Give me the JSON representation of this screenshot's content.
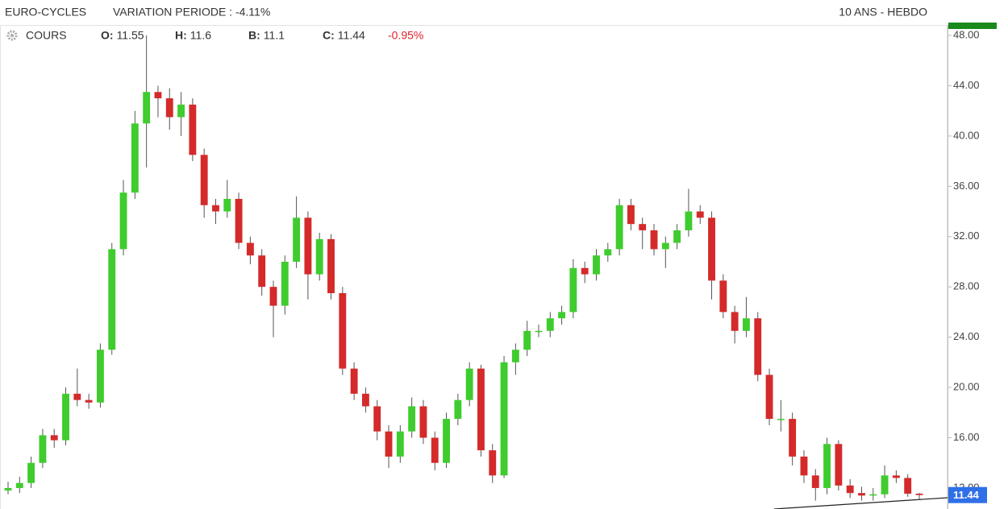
{
  "chart_data": {
    "type": "candlestick",
    "title": "EURO-CYCLES",
    "subtitle": "VARIATION PERIODE : -4.11%",
    "period": "10 ANS - HEBDO",
    "series_name": "COURS",
    "quote": [
      {
        "label": "O:",
        "value": 11.55
      },
      {
        "label": "H:",
        "value": 11.6
      },
      {
        "label": "B:",
        "value": 11.1
      },
      {
        "label": "C:",
        "value": 11.44
      }
    ],
    "change": "-0.95%",
    "up_color": "#3fcc2e",
    "down_color": "#d42a2a",
    "last_color": "#2f6fe8",
    "grid": false,
    "ylim": [
      10.33,
      48.77
    ],
    "yticks": [
      {
        "value": 12,
        "label": "12.00"
      },
      {
        "value": 16,
        "label": "16.00"
      },
      {
        "value": 20,
        "label": "20.00"
      },
      {
        "value": 24,
        "label": "24.00"
      },
      {
        "value": 28,
        "label": "28.00"
      },
      {
        "value": 32,
        "label": "32.00"
      },
      {
        "value": 36,
        "label": "36.00"
      },
      {
        "value": 40,
        "label": "40.00"
      },
      {
        "value": 44,
        "label": "44.00"
      },
      {
        "value": 48,
        "label": "48.00"
      }
    ],
    "open": [
      11.8,
      12.0,
      12.4,
      14.0,
      16.2,
      15.8,
      19.5,
      19.0,
      18.8,
      23.0,
      31.0,
      35.5,
      41.0,
      43.5,
      43.0,
      41.5,
      42.5,
      38.5,
      34.5,
      34.0,
      35.0,
      31.5,
      30.5,
      28.0,
      26.5,
      30.0,
      33.5,
      29.0,
      31.8,
      27.5,
      21.5,
      19.5,
      18.5,
      16.5,
      14.5,
      16.5,
      18.5,
      16.0,
      14.0,
      17.5,
      19.0,
      21.5,
      15.0,
      13.0,
      22.0,
      23.0,
      24.5,
      24.5,
      25.5,
      26.0,
      29.5,
      29.0,
      30.5,
      31.0,
      34.5,
      33.0,
      32.5,
      31.0,
      31.5,
      32.5,
      34.0,
      33.5,
      28.5,
      26.0,
      24.5,
      25.5,
      21.0,
      17.5,
      17.5,
      14.5,
      13.0,
      12.0,
      15.5,
      12.2,
      11.6,
      11.4,
      11.5,
      13.0,
      12.8,
      11.55
    ],
    "high": [
      12.5,
      12.9,
      14.5,
      16.7,
      16.7,
      20,
      21.5,
      19.5,
      23.5,
      31.5,
      36.5,
      42,
      48,
      44,
      43.8,
      43.5,
      43,
      39,
      35,
      36.5,
      35.5,
      32,
      31,
      28.5,
      30.5,
      35.2,
      34,
      32.3,
      32.2,
      28,
      22,
      20,
      19,
      17,
      17,
      19.2,
      19,
      16.5,
      18,
      19.5,
      22,
      21.8,
      15.5,
      22.5,
      23.5,
      25.3,
      25,
      26,
      26.5,
      30.2,
      30,
      31,
      31.5,
      35,
      35,
      33.5,
      33,
      32,
      33,
      35.8,
      34.5,
      34,
      29,
      26.5,
      27.2,
      26,
      21.5,
      19,
      18,
      15,
      13.5,
      16,
      15.8,
      12.7,
      12.1,
      12,
      13.8,
      13.4,
      13.1,
      11.6
    ],
    "low": [
      11.5,
      11.6,
      12,
      13.6,
      15.2,
      15.4,
      18.5,
      18.3,
      18.4,
      22.6,
      30.5,
      35,
      37.5,
      41.5,
      40.5,
      40,
      38,
      33.5,
      33,
      33.5,
      31,
      29.8,
      27.3,
      24,
      25.8,
      29.5,
      27,
      28.5,
      27,
      21,
      19,
      18,
      15.8,
      13.6,
      14,
      16,
      15.5,
      13.4,
      13.6,
      17,
      18.5,
      14.5,
      12.4,
      12.8,
      21,
      22.5,
      24,
      24,
      25,
      25.5,
      28.3,
      28.5,
      30,
      30.5,
      32.5,
      31,
      30.5,
      29.5,
      31,
      32,
      33,
      27,
      25.5,
      23.5,
      24,
      20.5,
      17,
      16.5,
      13.8,
      12.4,
      11,
      11.5,
      11.8,
      11.2,
      11,
      11,
      11.2,
      12.4,
      11.3,
      11.1
    ],
    "close": [
      12.0,
      12.4,
      14.0,
      16.2,
      15.8,
      19.5,
      19.0,
      18.8,
      23.0,
      31.0,
      35.5,
      41.0,
      43.5,
      43.0,
      41.5,
      42.5,
      38.5,
      34.5,
      34.0,
      35.0,
      31.5,
      30.5,
      28.0,
      26.5,
      30.0,
      33.5,
      29.0,
      31.8,
      27.5,
      21.5,
      19.5,
      18.5,
      16.5,
      14.5,
      16.5,
      18.5,
      16.0,
      14.0,
      17.5,
      19.0,
      21.5,
      15.0,
      13.0,
      22.0,
      23.0,
      24.5,
      24.5,
      25.5,
      26.0,
      29.5,
      29.0,
      30.5,
      31.0,
      34.5,
      33.0,
      32.5,
      31.0,
      31.5,
      32.5,
      34.0,
      33.5,
      28.5,
      26.0,
      24.5,
      25.5,
      21.0,
      17.5,
      17.5,
      14.5,
      13.0,
      12.0,
      15.5,
      12.2,
      11.6,
      11.4,
      11.5,
      13.0,
      12.8,
      11.55,
      11.44
    ]
  }
}
